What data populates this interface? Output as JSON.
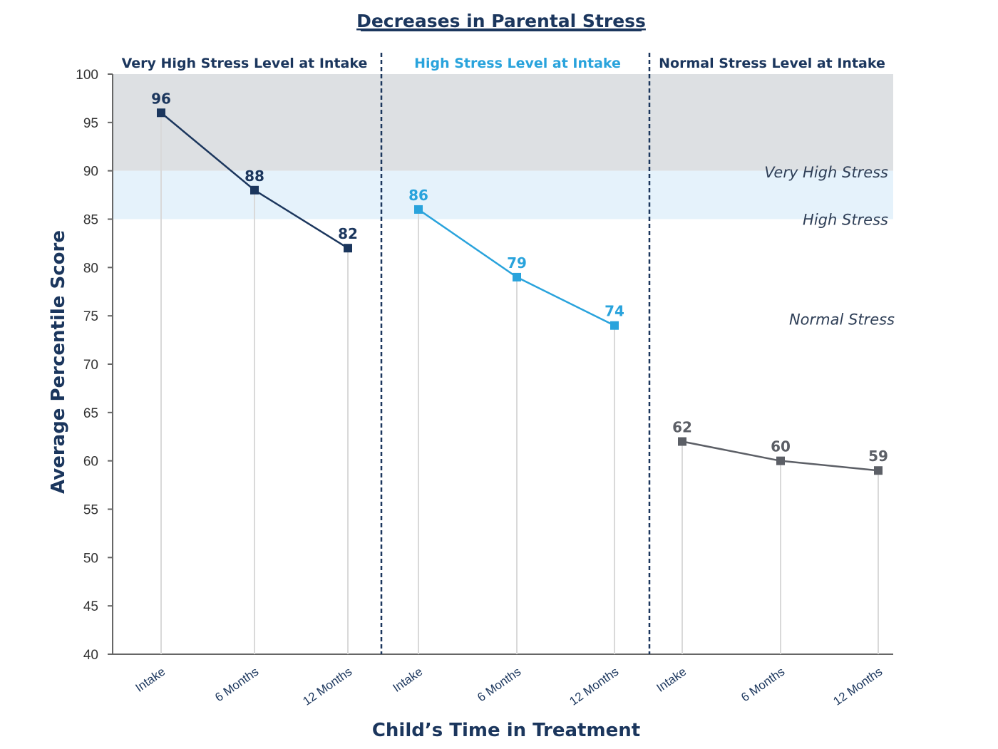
{
  "chart_data": {
    "type": "line",
    "title": "Decreases in Parental Stress",
    "xlabel": "Child’s Time in Treatment",
    "ylabel": "Average Percentile Score",
    "ylim": [
      40,
      100
    ],
    "yticks": [
      40,
      45,
      50,
      55,
      60,
      65,
      70,
      75,
      80,
      85,
      90,
      95,
      100
    ],
    "colors": {
      "very_high": "#1b365d",
      "high": "#29a3dc",
      "normal": "#5c5f66",
      "band_very_high": "#dde0e3",
      "band_high": "#e5f2fb",
      "axis": "#666666"
    },
    "bands": [
      {
        "label": "Very High Stress",
        "from": 90,
        "to": 100
      },
      {
        "label": "High Stress",
        "from": 85,
        "to": 90
      },
      {
        "label": "Normal Stress",
        "from": 40,
        "to": 85
      }
    ],
    "series": [
      {
        "name": "Very High Stress Level at Intake",
        "categories": [
          "Intake",
          "6 Months",
          "12 Months"
        ],
        "values": [
          96,
          88,
          82
        ]
      },
      {
        "name": "High Stress Level at Intake",
        "categories": [
          "Intake",
          "6 Months",
          "12 Months"
        ],
        "values": [
          86,
          79,
          74
        ]
      },
      {
        "name": "Normal Stress Level at Intake",
        "categories": [
          "Intake",
          "6 Months",
          "12 Months"
        ],
        "values": [
          62,
          60,
          59
        ]
      }
    ],
    "grid": false,
    "legend": "none"
  }
}
